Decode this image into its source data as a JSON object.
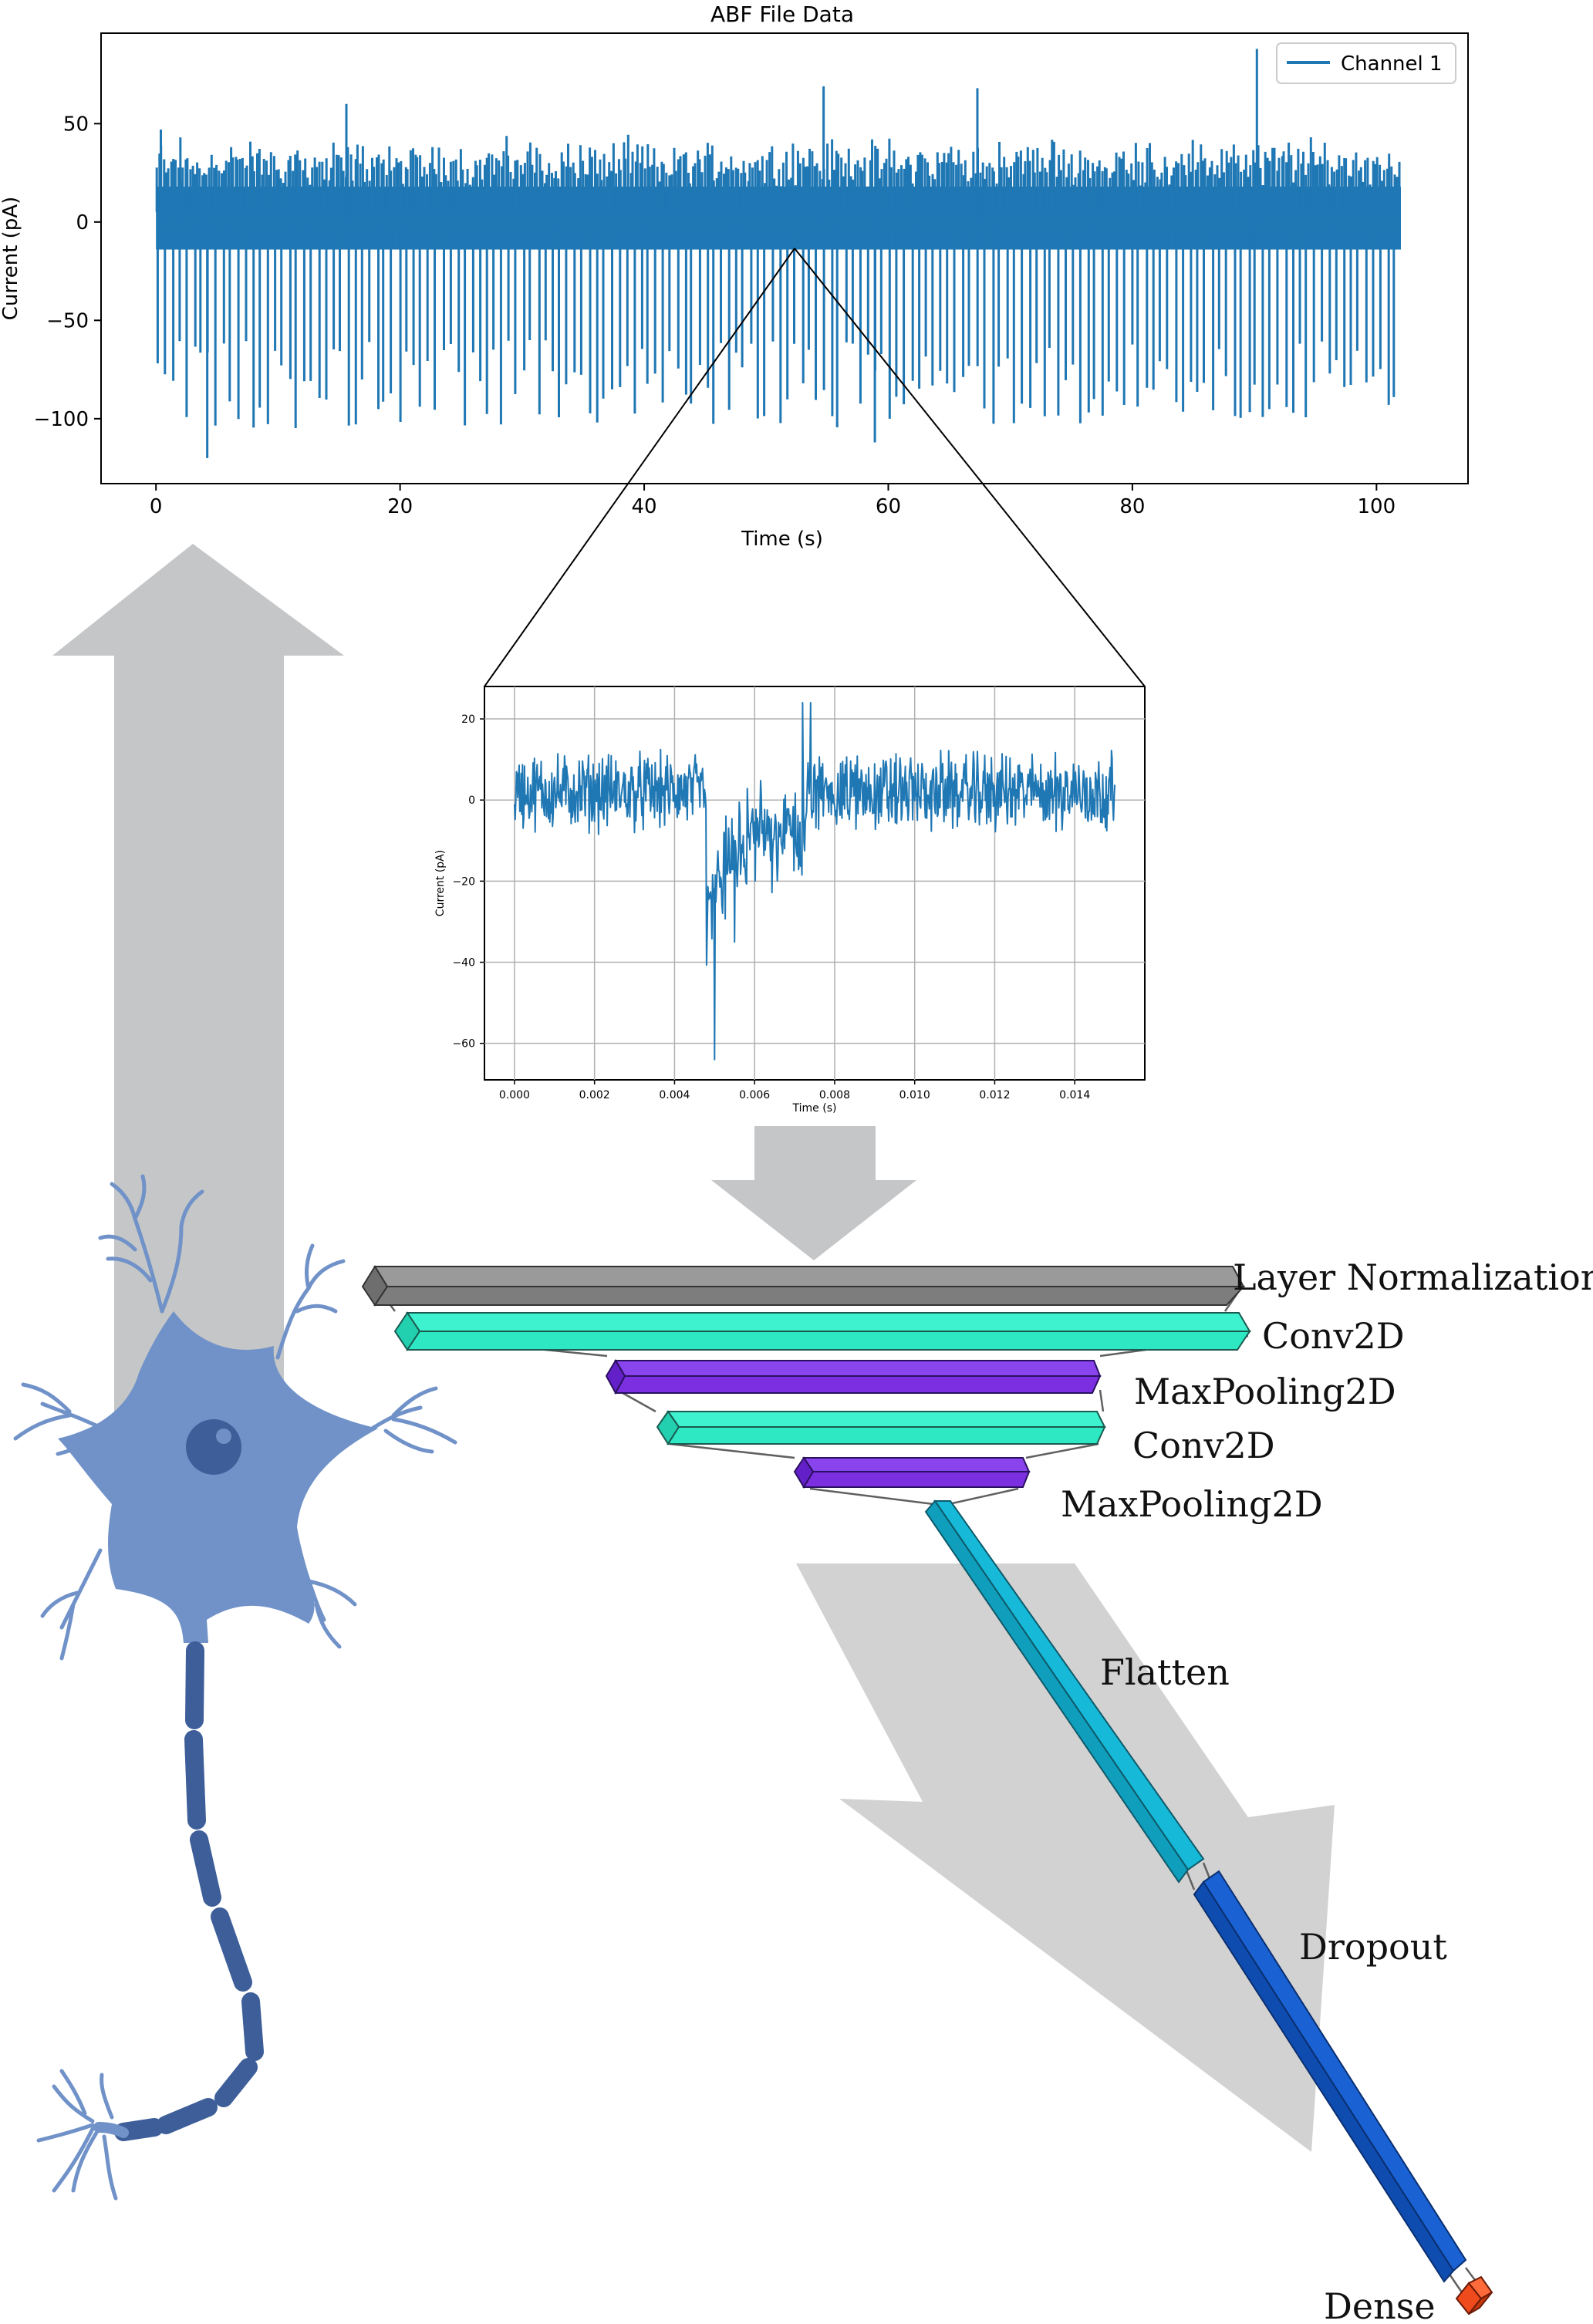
{
  "main_chart": {
    "title": "ABF File Data",
    "xlabel": "Time (s)",
    "ylabel": "Current (pA)",
    "x_ticks": [
      "0",
      "20",
      "40",
      "60",
      "80",
      "100"
    ],
    "y_ticks": [
      "50",
      "0",
      "−50",
      "−100"
    ],
    "legend": "Channel 1",
    "series_color": "#1f77b4"
  },
  "zoom_chart": {
    "xlabel": "Time (s)",
    "ylabel": "Current (pA)",
    "x_ticks": [
      "0.000",
      "0.002",
      "0.004",
      "0.006",
      "0.008",
      "0.010",
      "0.012",
      "0.014"
    ],
    "y_ticks": [
      "20",
      "0",
      "−20",
      "−40",
      "−60"
    ],
    "series_color": "#1f77b4"
  },
  "chart_data": [
    {
      "type": "line",
      "title": "ABF File Data",
      "xlabel": "Time (s)",
      "ylabel": "Current (pA)",
      "xlim": [
        -4.5,
        107.5
      ],
      "ylim": [
        -133,
        96
      ],
      "grid": false,
      "legend_position": "top-right",
      "series": [
        {
          "name": "Channel 1",
          "baseline_band": [
            -14,
            18
          ],
          "x_range": [
            0,
            102
          ],
          "spike_peaks": [
            {
              "x": 0.4,
              "y": 47
            },
            {
              "x": 2.0,
              "y": 43
            },
            {
              "x": 4.2,
              "y": -120
            },
            {
              "x": 15.6,
              "y": 60
            },
            {
              "x": 54.7,
              "y": 69
            },
            {
              "x": 58.9,
              "y": -112
            },
            {
              "x": 67.3,
              "y": 68
            },
            {
              "x": 90.2,
              "y": 88
            }
          ],
          "typical_upper_spikes": [
            25,
            45
          ],
          "typical_lower_spikes": [
            -60,
            -105
          ]
        }
      ]
    },
    {
      "type": "line",
      "xlabel": "Time (s)",
      "ylabel": "Current (pA)",
      "xlim": [
        -0.00075,
        0.01575
      ],
      "ylim": [
        -69,
        28
      ],
      "grid": true,
      "series": [
        {
          "x_range": [
            0.0,
            0.015
          ],
          "baseline_band": [
            -10,
            12
          ],
          "spike_peaks": [
            {
              "x": 0.005,
              "y": -64
            },
            {
              "x": 0.0072,
              "y": 24
            },
            {
              "x": 0.0074,
              "y": 24
            },
            {
              "x": 0.0055,
              "y": -35
            }
          ]
        }
      ]
    }
  ],
  "network": {
    "layers": [
      {
        "label": "Layer Normalization",
        "color": "#8c8c8c"
      },
      {
        "label": "Conv2D",
        "color": "#2ee8c4"
      },
      {
        "label": "MaxPooling2D",
        "color": "#7b2fe0"
      },
      {
        "label": "Conv2D",
        "color": "#2ee8c4"
      },
      {
        "label": "MaxPooling2D",
        "color": "#7b2fe0"
      },
      {
        "label": "Flatten",
        "color": "#17b9d8"
      },
      {
        "label": "Dropout",
        "color": "#1457c4"
      },
      {
        "label": "Dense",
        "color": "#ee4a1c"
      }
    ]
  },
  "colors": {
    "arrow_grey": "#c4c6c7",
    "arrow_light": "#d2d2d2",
    "neuron_body": "#7092c8",
    "neuron_axon": "#3d5e99"
  }
}
